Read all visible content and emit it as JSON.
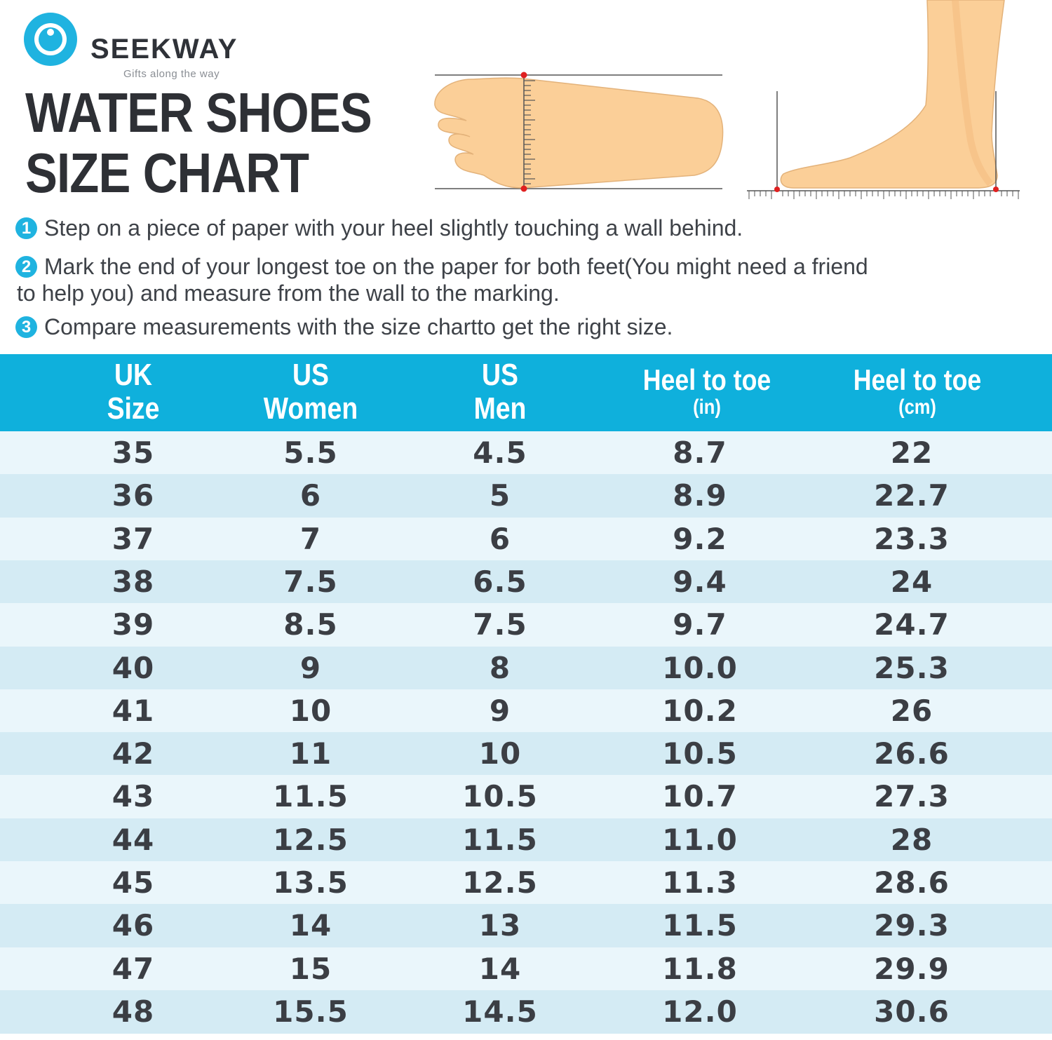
{
  "brand": {
    "name": "SEEKWAY",
    "tagline": "Gifts along the way",
    "accent_color": "#1fb3e0"
  },
  "title": {
    "line1": "WATER SHOES",
    "line2": "SIZE CHART"
  },
  "illustrations": {
    "top_view": "foot-top-view-measure-icon",
    "side_view": "foot-side-view-ruler-icon"
  },
  "steps": [
    {
      "num": "1",
      "text": "Step on a piece of paper with your heel slightly touching a wall behind."
    },
    {
      "num": "2",
      "text": "Mark the end of your longest toe on the paper for both feet(You might need a friend",
      "text2": "to help you) and measure from the wall to the marking."
    },
    {
      "num": "3",
      "text": "Compare measurements with the size chartto get the right size."
    }
  ],
  "table": {
    "header_color": "#0fb0dc",
    "columns": [
      {
        "l1": "UK",
        "l2": "Size"
      },
      {
        "l1": "US",
        "l2": "Women"
      },
      {
        "l1": "US",
        "l2": "Men"
      },
      {
        "l1": "Heel to toe",
        "l2": "(in)"
      },
      {
        "l1": "Heel to toe",
        "l2": "(cm)"
      }
    ],
    "rows": [
      [
        "35",
        "5.5",
        "4.5",
        "8.7",
        "22"
      ],
      [
        "36",
        "6",
        "5",
        "8.9",
        "22.7"
      ],
      [
        "37",
        "7",
        "6",
        "9.2",
        "23.3"
      ],
      [
        "38",
        "7.5",
        "6.5",
        "9.4",
        "24"
      ],
      [
        "39",
        "8.5",
        "7.5",
        "9.7",
        "24.7"
      ],
      [
        "40",
        "9",
        "8",
        "10.0",
        "25.3"
      ],
      [
        "41",
        "10",
        "9",
        "10.2",
        "26"
      ],
      [
        "42",
        "11",
        "10",
        "10.5",
        "26.6"
      ],
      [
        "43",
        "11.5",
        "10.5",
        "10.7",
        "27.3"
      ],
      [
        "44",
        "12.5",
        "11.5",
        "11.0",
        "28"
      ],
      [
        "45",
        "13.5",
        "12.5",
        "11.3",
        "28.6"
      ],
      [
        "46",
        "14",
        "13",
        "11.5",
        "29.3"
      ],
      [
        "47",
        "15",
        "14",
        "11.8",
        "29.9"
      ],
      [
        "48",
        "15.5",
        "14.5",
        "12.0",
        "30.6"
      ]
    ]
  }
}
